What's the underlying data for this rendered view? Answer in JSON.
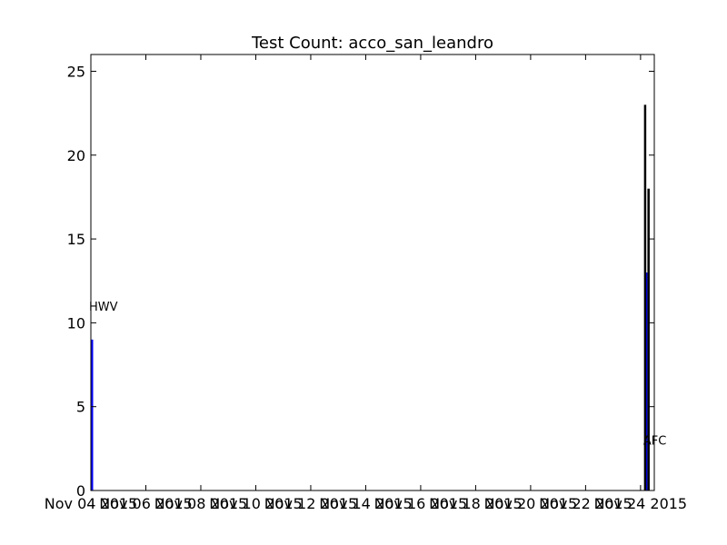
{
  "chart_data": {
    "type": "bar",
    "title": "Test Count: acco_san_leandro",
    "xlabel": "",
    "ylabel": "",
    "ylim": [
      0,
      26
    ],
    "xlim": [
      "2015-11-04",
      "2015-11-24T12:00"
    ],
    "grid": false,
    "y_ticks": [
      {
        "value": 0,
        "label": "0"
      },
      {
        "value": 5,
        "label": "5"
      },
      {
        "value": 10,
        "label": "10"
      },
      {
        "value": 15,
        "label": "15"
      },
      {
        "value": 20,
        "label": "20"
      },
      {
        "value": 25,
        "label": "25"
      }
    ],
    "x_ticks": [
      {
        "value": "2015-11-04",
        "label": "Nov 04 2015"
      },
      {
        "value": "2015-11-06",
        "label": "Nov 06 2015"
      },
      {
        "value": "2015-11-08",
        "label": "Nov 08 2015"
      },
      {
        "value": "2015-11-10",
        "label": "Nov 10 2015"
      },
      {
        "value": "2015-11-12",
        "label": "Nov 12 2015"
      },
      {
        "value": "2015-11-14",
        "label": "Nov 14 2015"
      },
      {
        "value": "2015-11-16",
        "label": "Nov 16 2015"
      },
      {
        "value": "2015-11-18",
        "label": "Nov 18 2015"
      },
      {
        "value": "2015-11-20",
        "label": "Nov 20 2015"
      },
      {
        "value": "2015-11-22",
        "label": "Nov 22 2015"
      },
      {
        "value": "2015-11-24",
        "label": "Nov 24 2015"
      }
    ],
    "series": [
      {
        "name": "HWV",
        "color": "#0000ff",
        "points": [
          {
            "x": "2015-11-04",
            "y": 9
          }
        ]
      },
      {
        "name": "AFC",
        "color": "#0000ff",
        "points": [
          {
            "x": "2015-11-24T04:00",
            "y": 13
          }
        ]
      },
      {
        "name": "",
        "color": "#000000",
        "points": [
          {
            "x": "2015-11-24T03:00",
            "y": 23
          },
          {
            "x": "2015-11-24T06:00",
            "y": 18
          }
        ]
      }
    ],
    "annotations": [
      {
        "text": "HWV",
        "x": "2015-11-04",
        "y": 11
      },
      {
        "text": "AFC",
        "x": "2015-11-24T04:00",
        "y": 3
      }
    ]
  }
}
